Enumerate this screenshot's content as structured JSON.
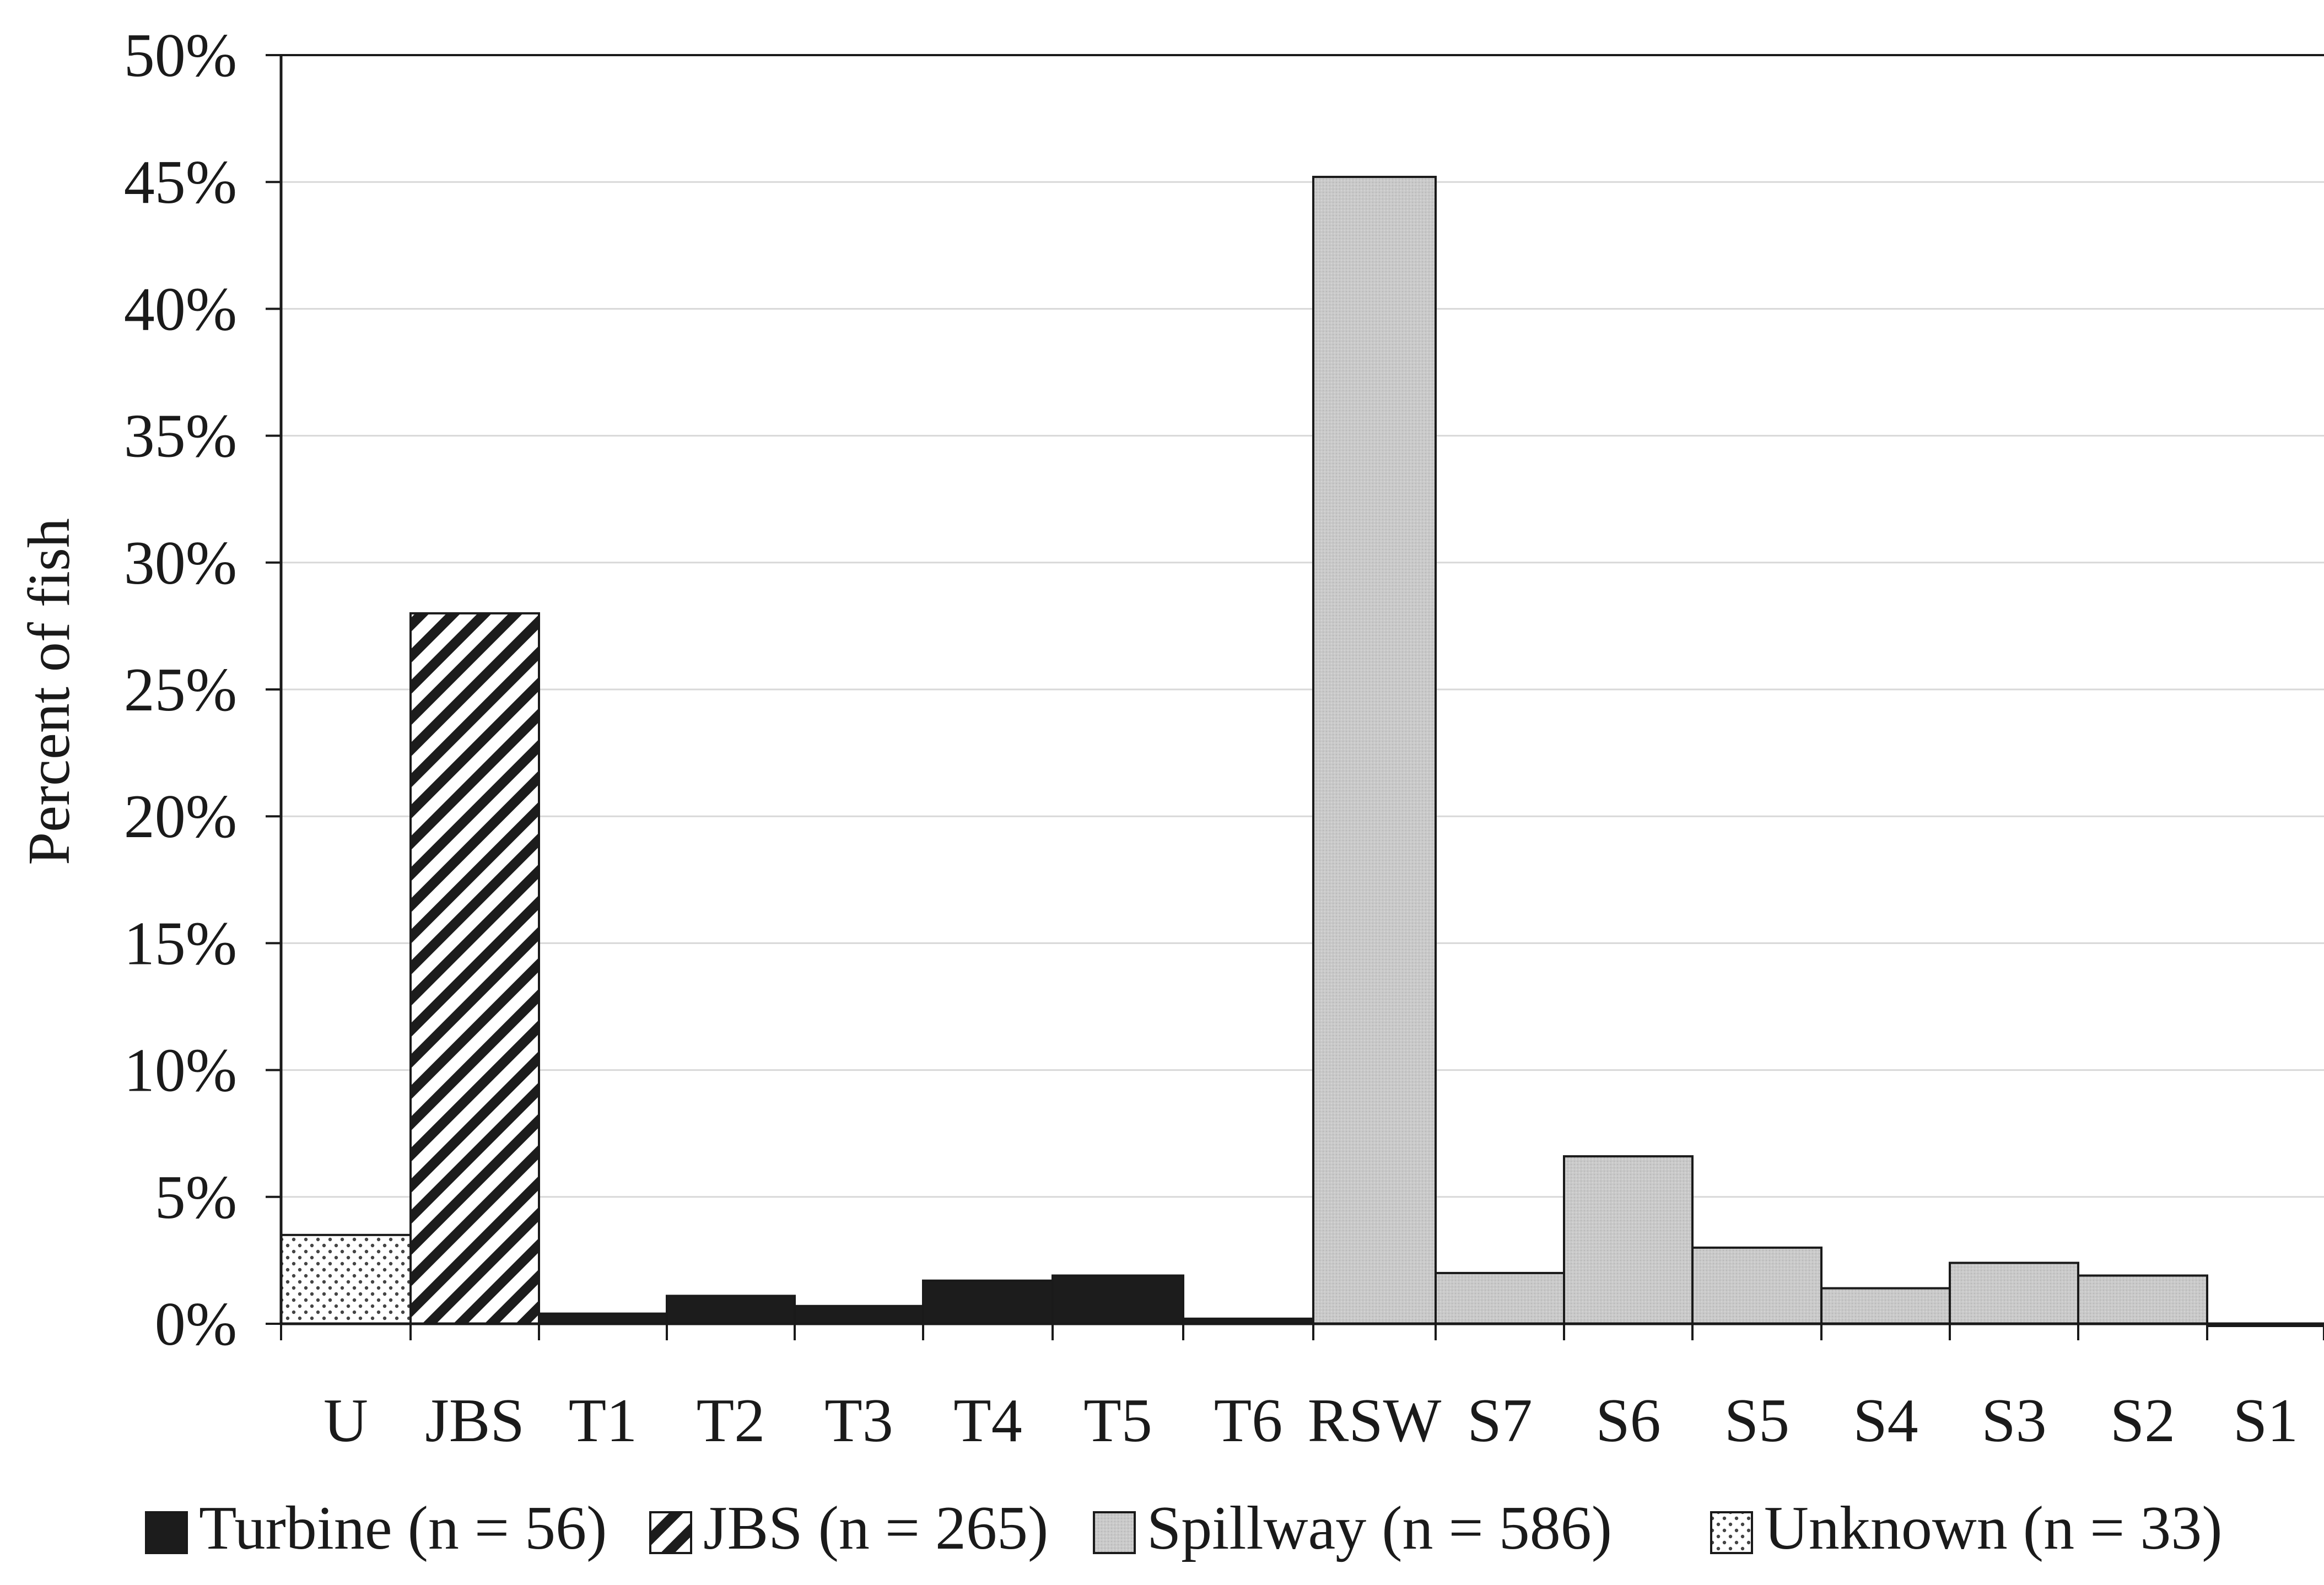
{
  "chart_data": {
    "type": "bar",
    "title": "",
    "xlabel": "",
    "ylabel": "Percent of fish",
    "ylim": [
      0,
      50
    ],
    "y_unit": "%",
    "y_ticks": [
      "0%",
      "5%",
      "10%",
      "15%",
      "20%",
      "25%",
      "30%",
      "35%",
      "40%",
      "45%",
      "50%"
    ],
    "grid": true,
    "legend_position": "bottom",
    "categories": [
      "U",
      "JBS",
      "T1",
      "T2",
      "T3",
      "T4",
      "T5",
      "T6",
      "RSW",
      "S7",
      "S6",
      "S5",
      "S4",
      "S3",
      "S2",
      "S1"
    ],
    "bars": [
      {
        "category": "U",
        "value": 3.5,
        "series": "unknown"
      },
      {
        "category": "JBS",
        "value": 28.0,
        "series": "jbs"
      },
      {
        "category": "T1",
        "value": 0.4,
        "series": "turbine"
      },
      {
        "category": "T2",
        "value": 1.1,
        "series": "turbine"
      },
      {
        "category": "T3",
        "value": 0.7,
        "series": "turbine"
      },
      {
        "category": "T4",
        "value": 1.7,
        "series": "turbine"
      },
      {
        "category": "T5",
        "value": 1.9,
        "series": "turbine"
      },
      {
        "category": "T6",
        "value": 0.2,
        "series": "turbine"
      },
      {
        "category": "RSW",
        "value": 45.2,
        "series": "spillway"
      },
      {
        "category": "S7",
        "value": 2.0,
        "series": "spillway"
      },
      {
        "category": "S6",
        "value": 6.6,
        "series": "spillway"
      },
      {
        "category": "S5",
        "value": 3.0,
        "series": "spillway"
      },
      {
        "category": "S4",
        "value": 1.4,
        "series": "spillway"
      },
      {
        "category": "S3",
        "value": 2.4,
        "series": "spillway"
      },
      {
        "category": "S2",
        "value": 1.9,
        "series": "spillway"
      },
      {
        "category": "S1",
        "value": 0.0,
        "series": "spillway"
      }
    ],
    "series": [
      {
        "key": "turbine",
        "name": "Turbine (n = 56)",
        "fill": "solid-black"
      },
      {
        "key": "jbs",
        "name": "JBS (n = 265)",
        "fill": "diagonal-hatch"
      },
      {
        "key": "spillway",
        "name": "Spillway (n = 586)",
        "fill": "light-gray"
      },
      {
        "key": "unknown",
        "name": "Unknown (n = 33)",
        "fill": "dotted"
      }
    ],
    "colors": {
      "turbine": "#1c1c1c",
      "spillway": "#c9c9c9",
      "hatch": "#1c1c1c",
      "dots": "#444444",
      "grid": "#d8d8d8",
      "axis": "#1a1a1a"
    }
  }
}
